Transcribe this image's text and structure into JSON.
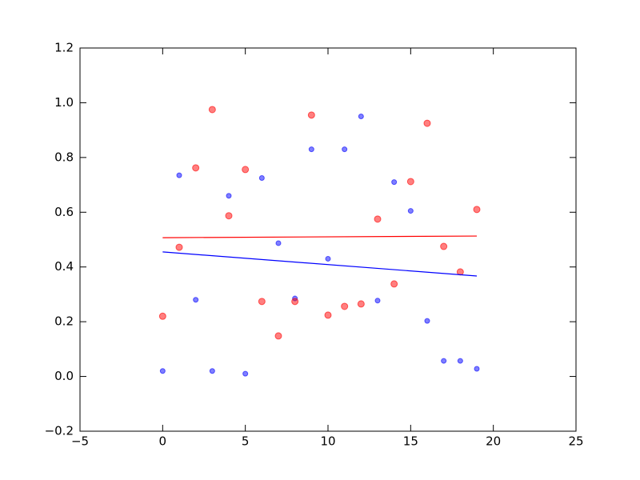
{
  "chart_data": {
    "type": "scatter",
    "xlim": [
      -5,
      25
    ],
    "xticks": [
      {
        "value": -5,
        "label": "−5"
      },
      0,
      5,
      10,
      15,
      20,
      25
    ],
    "ylim": [
      -0.2,
      1.2
    ],
    "yticks": [
      {
        "value": -0.2,
        "label": "−0.2"
      },
      {
        "value": 0,
        "label": "0.0"
      },
      0.2,
      0.4,
      0.6,
      0.8,
      {
        "value": 1,
        "label": "1.0"
      },
      1.2
    ],
    "series": [
      {
        "type": "scatter",
        "color": "#0000ff",
        "size": 3,
        "x": [
          0,
          1,
          2,
          3,
          4,
          5,
          6,
          7,
          8,
          9,
          10,
          11,
          12,
          13,
          14,
          15,
          16,
          17,
          18,
          19
        ],
        "values": [
          0.02,
          0.735,
          0.28,
          0.02,
          0.66,
          0.01,
          0.725,
          0.487,
          0.285,
          0.83,
          0.43,
          0.83,
          0.95,
          0.277,
          0.71,
          0.605,
          0.203,
          0.057,
          0.057,
          0.028
        ]
      },
      {
        "type": "scatter",
        "color": "#ff0000",
        "size": 4,
        "x": [
          0,
          1,
          2,
          3,
          4,
          5,
          6,
          7,
          8,
          9,
          10,
          11,
          12,
          13,
          14,
          15,
          16,
          17,
          18,
          19
        ],
        "values": [
          0.22,
          0.472,
          0.762,
          0.975,
          0.587,
          0.756,
          0.274,
          0.148,
          0.274,
          0.955,
          0.224,
          0.256,
          0.265,
          0.575,
          0.338,
          0.712,
          0.925,
          0.475,
          0.382,
          0.61
        ]
      },
      {
        "type": "line",
        "color": "#ff0000",
        "x": [
          0,
          19
        ],
        "values": [
          0.507,
          0.513
        ]
      },
      {
        "type": "line",
        "color": "#0000ff",
        "x": [
          0,
          19
        ],
        "values": [
          0.455,
          0.367
        ]
      }
    ]
  }
}
